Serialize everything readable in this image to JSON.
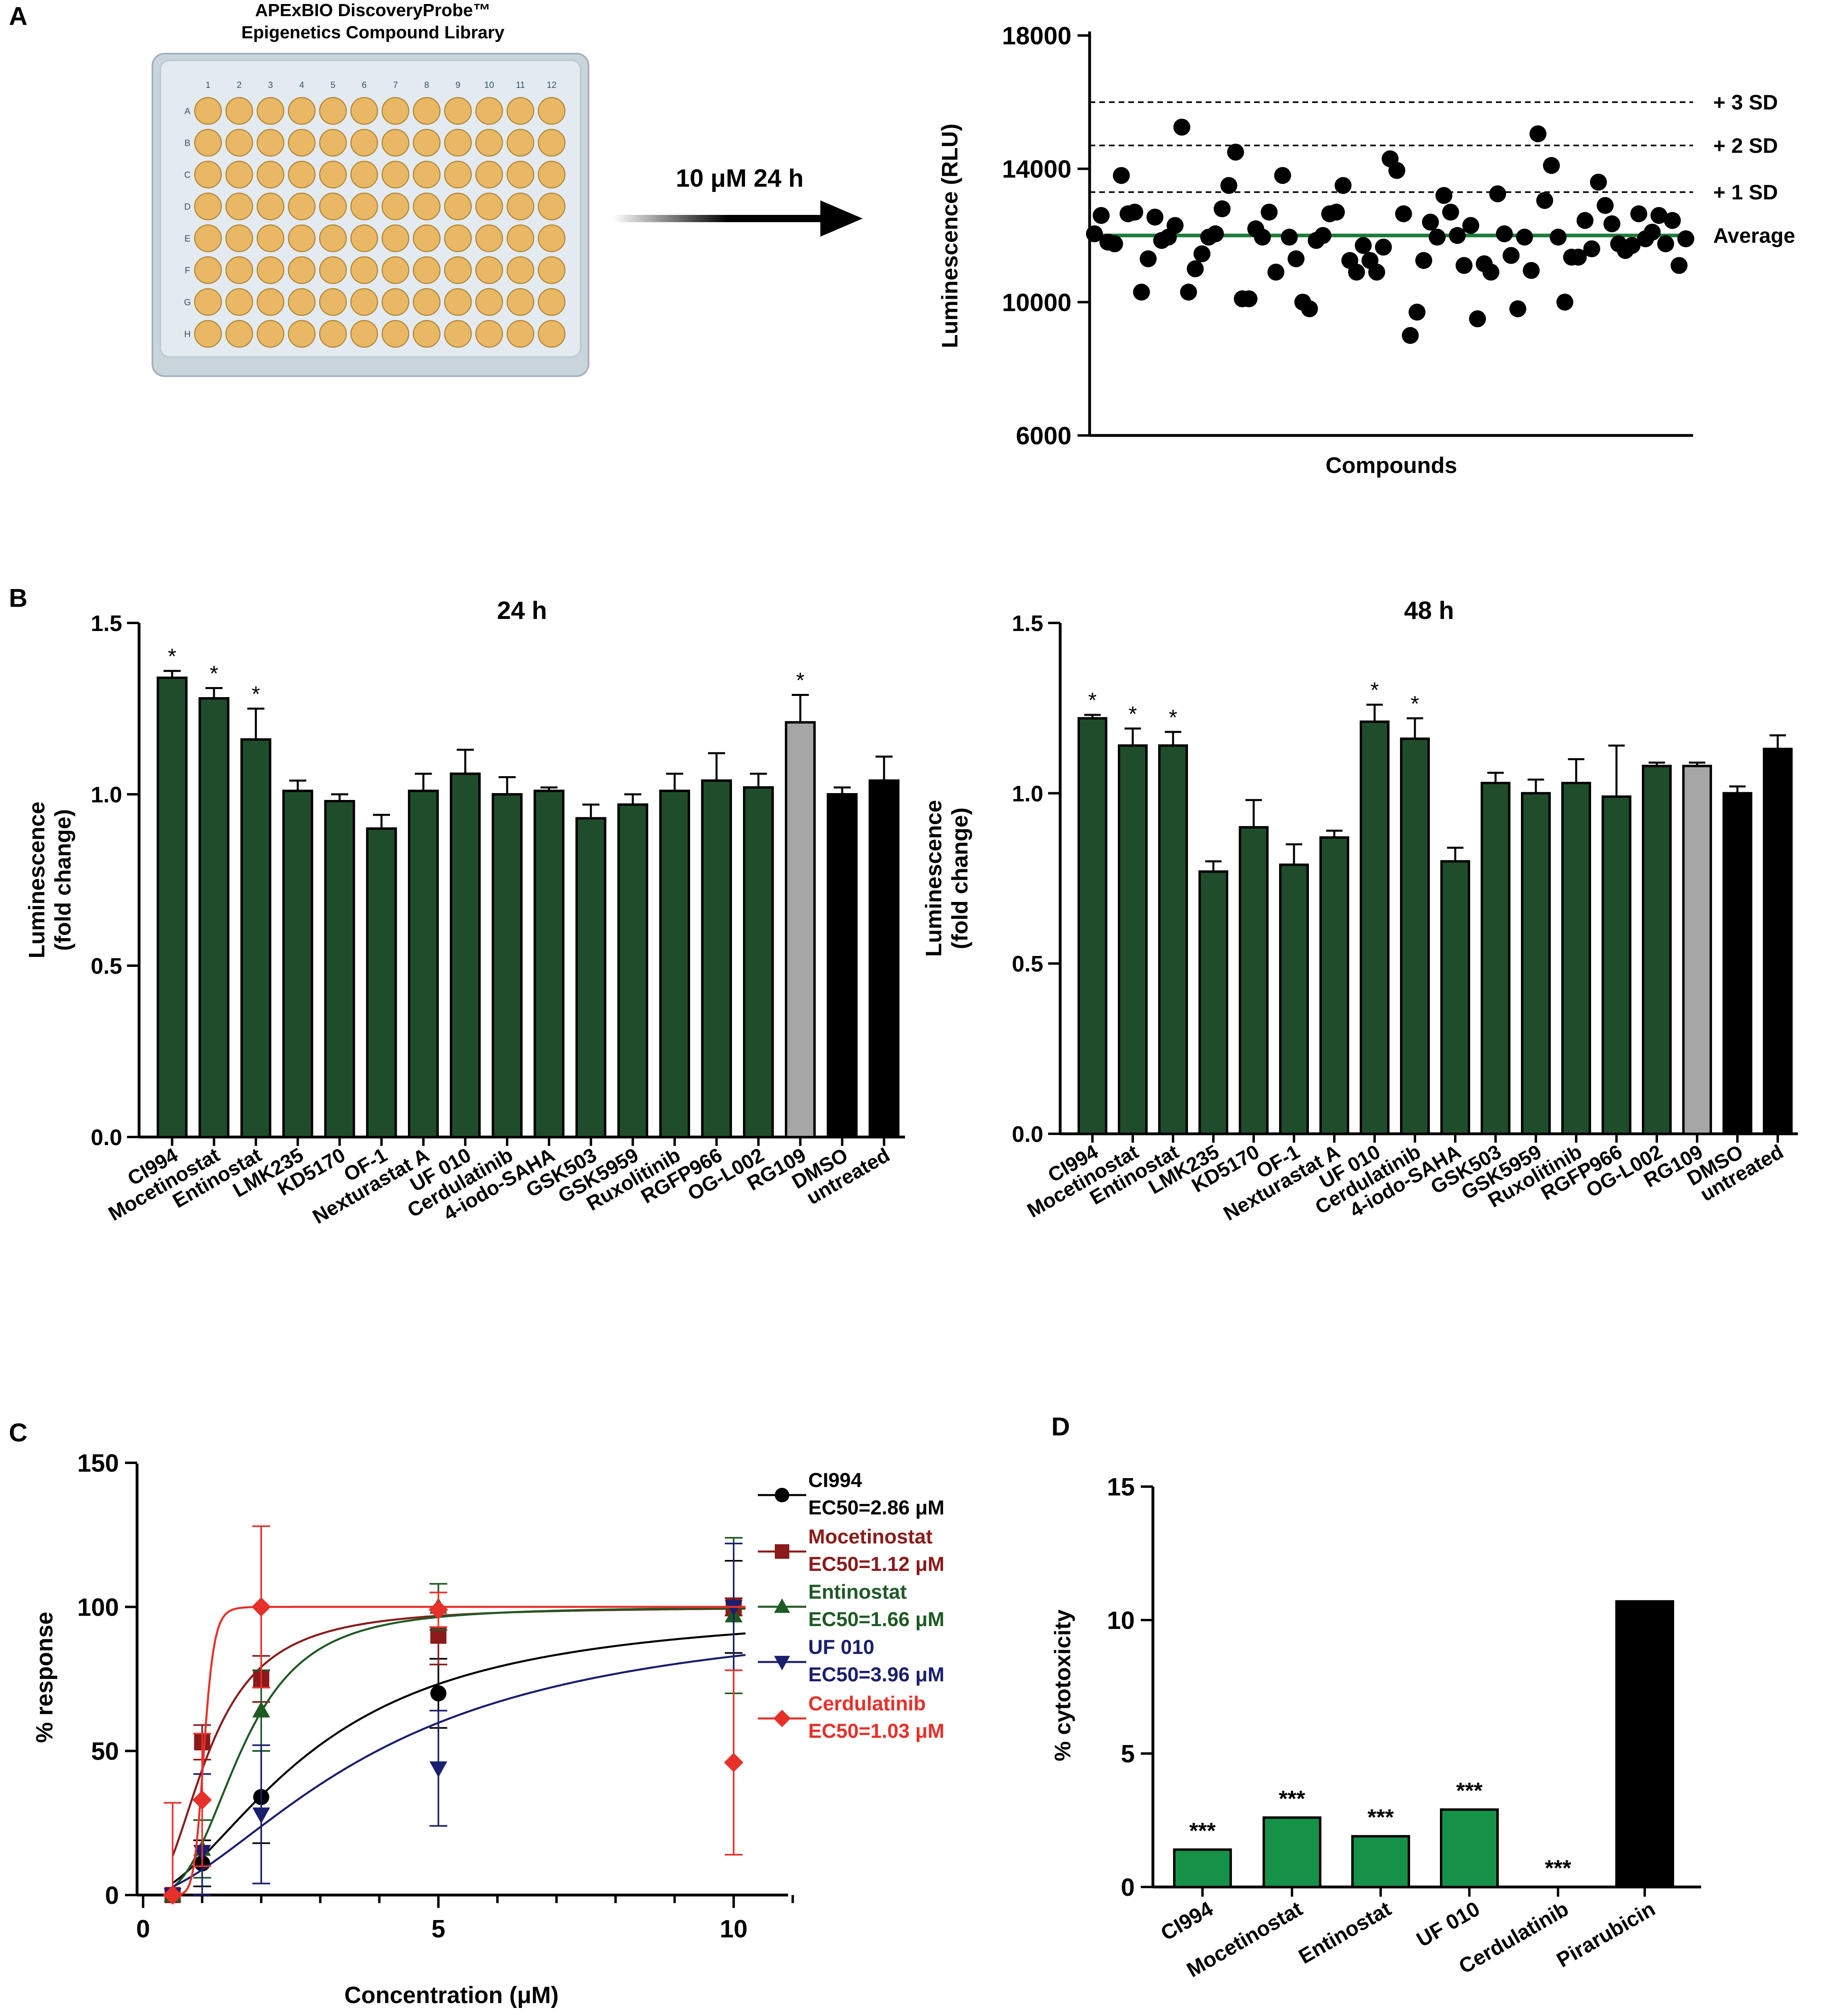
{
  "panel_labels": [
    "A",
    "B",
    "C",
    "D"
  ],
  "plate": {
    "title_line1": "APExBIO DiscoveryProbe™",
    "title_line2": "Epigenetics Compound Library",
    "columns": [
      "1",
      "2",
      "3",
      "4",
      "5",
      "6",
      "7",
      "8",
      "9",
      "10",
      "11",
      "12"
    ],
    "rows": [
      "A",
      "B",
      "C",
      "D",
      "E",
      "F",
      "G",
      "H"
    ],
    "well_color": "#E8B865",
    "plate_color": "#DCE6EC"
  },
  "arrow_label": "10 μM 24 h",
  "colors": {
    "bar_green": "#1F4D2B",
    "bar_gray": "#A6A6A6",
    "bar_black": "#000000",
    "average_line": "#1E7B3A",
    "cytotox_green": "#159148",
    "c_ci994": "#000000",
    "c_mocetinostat": "#8B1A1A",
    "c_entinostat": "#1F5A25",
    "c_uf010": "#1A1F6E",
    "c_cerdulatinib": "#E8302A"
  },
  "chart_data": [
    {
      "id": "A",
      "type": "scatter",
      "title": "",
      "xlabel": "Compounds",
      "ylabel": "Luminescence (RLU)",
      "ylim": [
        6000,
        18000
      ],
      "yticks": [
        6000,
        10000,
        14000,
        18000
      ],
      "values": [
        12050,
        12600,
        11800,
        11750,
        13800,
        12650,
        12700,
        10300,
        11300,
        12550,
        11850,
        11950,
        12300,
        15250,
        10300,
        11000,
        11450,
        11950,
        12050,
        12800,
        13500,
        14500,
        10100,
        10100,
        12200,
        11950,
        12700,
        10900,
        13800,
        11950,
        11300,
        10000,
        9800,
        11850,
        12000,
        12650,
        12700,
        13500,
        11250,
        10900,
        11700,
        11250,
        10900,
        11650,
        14300,
        13950,
        12650,
        9000,
        9700,
        11250,
        12400,
        11950,
        13200,
        12700,
        12000,
        11100,
        12300,
        9500,
        11150,
        10900,
        13250,
        12050,
        11400,
        9800,
        11950,
        10950,
        15050,
        13050,
        14100,
        11950,
        10000,
        11350,
        11350,
        12450,
        11600,
        13600,
        12900,
        12350,
        11750,
        11550,
        11700,
        12650,
        11900,
        12100,
        12600,
        11750,
        12450,
        11100,
        11900
      ],
      "reference_lines": [
        {
          "label": "+ 3 SD",
          "value": 16000,
          "style": "dashed"
        },
        {
          "label": "+ 2 SD",
          "value": 14700,
          "style": "dashed"
        },
        {
          "label": "+ 1 SD",
          "value": 13300,
          "style": "dashed"
        },
        {
          "label": "Average",
          "value": 12000,
          "style": "solid"
        }
      ]
    },
    {
      "id": "B-24h",
      "type": "bar",
      "title": "24 h",
      "ylabel": "Luminescence (fold change)",
      "ylabel_lines": [
        "Luminescence",
        "(fold change)"
      ],
      "ylim": [
        0,
        1.5
      ],
      "yticks": [
        "0.0",
        "0.5",
        "1.0",
        "1.5"
      ],
      "categories": [
        "CI994",
        "Mocetinostat",
        "Entinostat",
        "LMK235",
        "KD5170",
        "OF-1",
        "Nexturastat A",
        "UF 010",
        "Cerdulatinib",
        "4-iodo-SAHA",
        "GSK503",
        "GSK5959",
        "Ruxolitinib",
        "RGFP966",
        "OG-L002",
        "RG109",
        "DMSO",
        "untreated"
      ],
      "values": [
        1.34,
        1.28,
        1.16,
        1.01,
        0.98,
        0.9,
        1.01,
        1.06,
        1.0,
        1.01,
        0.93,
        0.97,
        1.01,
        1.04,
        1.02,
        1.21,
        1.0,
        1.04
      ],
      "errors": [
        0.02,
        0.03,
        0.09,
        0.03,
        0.02,
        0.04,
        0.05,
        0.07,
        0.05,
        0.01,
        0.04,
        0.03,
        0.05,
        0.08,
        0.04,
        0.08,
        0.02,
        0.07
      ],
      "significant": [
        true,
        true,
        true,
        false,
        false,
        false,
        false,
        false,
        false,
        false,
        false,
        false,
        false,
        false,
        false,
        true,
        false,
        false
      ],
      "star": "*",
      "bar_kinds": [
        "g",
        "g",
        "g",
        "g",
        "g",
        "g",
        "g",
        "g",
        "g",
        "g",
        "g",
        "g",
        "g",
        "g",
        "g",
        "gray",
        "black",
        "black"
      ]
    },
    {
      "id": "B-48h",
      "type": "bar",
      "title": "48 h",
      "ylabel": "Luminescence (fold change)",
      "ylabel_lines": [
        "Luminescence",
        "(fold change)"
      ],
      "ylim": [
        0,
        1.5
      ],
      "yticks": [
        "0.0",
        "0.5",
        "1.0",
        "1.5"
      ],
      "categories": [
        "CI994",
        "Mocetinostat",
        "Entinostat",
        "LMK235",
        "KD5170",
        "OF-1",
        "Nexturastat A",
        "UF 010",
        "Cerdulatinib",
        "4-iodo-SAHA",
        "GSK503",
        "GSK5959",
        "Ruxolitinib",
        "RGFP966",
        "OG-L002",
        "RG109",
        "DMSO",
        "untreated"
      ],
      "values": [
        1.22,
        1.14,
        1.14,
        0.77,
        0.9,
        0.79,
        0.87,
        1.21,
        1.16,
        0.8,
        1.03,
        1.0,
        1.03,
        0.99,
        1.08,
        1.08,
        1.0,
        1.13
      ],
      "errors": [
        0.01,
        0.05,
        0.04,
        0.03,
        0.08,
        0.06,
        0.02,
        0.05,
        0.06,
        0.04,
        0.03,
        0.04,
        0.07,
        0.15,
        0.01,
        0.01,
        0.02,
        0.04
      ],
      "significant": [
        true,
        true,
        true,
        false,
        false,
        false,
        false,
        true,
        true,
        false,
        false,
        false,
        false,
        false,
        false,
        false,
        false,
        false
      ],
      "star": "*",
      "bar_kinds": [
        "g",
        "g",
        "g",
        "g",
        "g",
        "g",
        "g",
        "g",
        "g",
        "g",
        "g",
        "g",
        "g",
        "g",
        "g",
        "gray",
        "black",
        "black"
      ]
    },
    {
      "id": "C",
      "type": "line",
      "title": "",
      "xlabel": "Concentration (μM)",
      "ylabel": "% response",
      "xlim": [
        0,
        11
      ],
      "ylim": [
        0,
        150
      ],
      "xticks": [
        "0",
        "5",
        "10"
      ],
      "yticks": [
        "0",
        "50",
        "100",
        "150"
      ],
      "series": [
        {
          "name": "CI994",
          "ec50_text": "EC50=2.86 μM",
          "ec50": 2.86,
          "hill": 1.8,
          "marker": "circle",
          "color_key": "c_ci994",
          "x": [
            0.5,
            1,
            2,
            5,
            10
          ],
          "y": [
            0,
            11,
            34,
            70,
            100
          ],
          "err": [
            0,
            8,
            16,
            12,
            16
          ]
        },
        {
          "name": "Mocetinostat",
          "ec50_text": "EC50=1.12 μM",
          "ec50": 1.12,
          "hill": 2.3,
          "marker": "square",
          "color_key": "c_mocetinostat",
          "x": [
            0.5,
            1,
            2,
            5,
            10
          ],
          "y": [
            0,
            53,
            75,
            90,
            100
          ],
          "err": [
            0,
            6,
            8,
            10,
            3
          ]
        },
        {
          "name": "Entinostat",
          "ec50_text": "EC50=1.66 μM",
          "ec50": 1.66,
          "hill": 3.0,
          "marker": "triangle-up",
          "color_key": "c_entinostat",
          "x": [
            0.5,
            1,
            2,
            5,
            10
          ],
          "y": [
            0,
            16,
            64,
            100,
            97
          ],
          "err": [
            0,
            10,
            14,
            8,
            27
          ]
        },
        {
          "name": "UF 010",
          "ec50_text": "EC50=3.96 μM",
          "ec50": 3.96,
          "hill": 1.7,
          "marker": "triangle-down",
          "color_key": "c_uf010",
          "x": [
            0.5,
            1,
            2,
            5,
            10
          ],
          "y": [
            0,
            15,
            28,
            44,
            100
          ],
          "err": [
            0,
            27,
            24,
            20,
            22
          ]
        },
        {
          "name": "Cerdulatinib",
          "ec50_text": "EC50=1.03 μM",
          "ec50": 1.03,
          "hill": 12.0,
          "marker": "diamond",
          "color_key": "c_cerdulatinib",
          "x": [
            0.5,
            1,
            2,
            5,
            10
          ],
          "y": [
            0,
            33,
            100,
            99,
            46
          ],
          "err": [
            32,
            23,
            28,
            6,
            32
          ]
        }
      ]
    },
    {
      "id": "D",
      "type": "bar",
      "title": "",
      "ylabel": "% cytotoxicity",
      "ylim": [
        0,
        15
      ],
      "yticks": [
        "0",
        "5",
        "10",
        "15"
      ],
      "categories": [
        "CI994",
        "Mocetinostat",
        "Entinostat",
        "UF 010",
        "Cerdulatinib",
        "Pirarubicin"
      ],
      "values": [
        1.4,
        2.6,
        1.9,
        2.9,
        0.0,
        10.7
      ],
      "significance": [
        "***",
        "***",
        "***",
        "***",
        "***",
        ""
      ],
      "bar_kinds": [
        "g",
        "g",
        "g",
        "g",
        "g",
        "black"
      ]
    }
  ]
}
